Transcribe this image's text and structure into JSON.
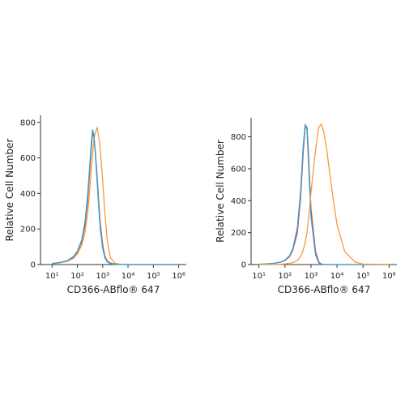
{
  "chart_data": [
    {
      "type": "line",
      "xscale": "log",
      "xlabel": "CD366-ABflo® 647",
      "ylabel": "Relative Cell Number",
      "xlim": [
        3.5,
        2000000
      ],
      "ylim": [
        0,
        840
      ],
      "xticks": [
        {
          "value": 10,
          "label": "10¹"
        },
        {
          "value": 100,
          "label": "10²"
        },
        {
          "value": 1000,
          "label": "10³"
        },
        {
          "value": 10000,
          "label": "10⁴"
        },
        {
          "value": 100000,
          "label": "10⁵"
        },
        {
          "value": 1000000,
          "label": "10⁶"
        }
      ],
      "yticks": [
        0,
        200,
        400,
        600,
        800
      ],
      "x": [
        10,
        20,
        40,
        70,
        100,
        150,
        200,
        250,
        300,
        350,
        400,
        450,
        500,
        600,
        700,
        800,
        1000,
        1200,
        1500,
        2000,
        3000,
        5000,
        10000,
        100000,
        1000000
      ],
      "series": [
        {
          "color": "#e0413a",
          "values": [
            5,
            10,
            20,
            40,
            70,
            130,
            220,
            350,
            500,
            640,
            740,
            720,
            650,
            500,
            350,
            230,
            110,
            50,
            20,
            8,
            3,
            1,
            0,
            0,
            0
          ]
        },
        {
          "color": "#f59a3a",
          "values": [
            5,
            10,
            18,
            35,
            60,
            110,
            180,
            280,
            400,
            520,
            620,
            700,
            740,
            770,
            720,
            650,
            470,
            300,
            140,
            40,
            8,
            2,
            0,
            0,
            0
          ]
        },
        {
          "color": "#2aa6d8",
          "values": [
            6,
            12,
            22,
            45,
            75,
            140,
            240,
            380,
            530,
            670,
            760,
            730,
            640,
            470,
            320,
            200,
            90,
            40,
            15,
            6,
            2,
            1,
            0,
            0,
            0
          ]
        }
      ]
    },
    {
      "type": "line",
      "xscale": "log",
      "xlabel": "CD366-ABflo® 647",
      "ylabel": "Relative Cell Number",
      "xlim": [
        5,
        2000000
      ],
      "ylim": [
        0,
        920
      ],
      "xticks": [
        {
          "value": 10,
          "label": "10¹"
        },
        {
          "value": 100,
          "label": "10²"
        },
        {
          "value": 1000,
          "label": "10³"
        },
        {
          "value": 10000,
          "label": "10⁴"
        },
        {
          "value": 100000,
          "label": "10⁵"
        },
        {
          "value": 1000000,
          "label": "10⁶"
        }
      ],
      "yticks": [
        0,
        200,
        400,
        600,
        800
      ],
      "x": [
        10,
        20,
        40,
        70,
        100,
        150,
        200,
        300,
        400,
        500,
        600,
        700,
        800,
        1000,
        1500,
        2000,
        2500,
        3000,
        4000,
        5000,
        7000,
        10000,
        20000,
        50000,
        100000,
        1000000
      ],
      "series": [
        {
          "color": "#e0413a",
          "values": [
            2,
            4,
            8,
            15,
            25,
            50,
            90,
            200,
            420,
            700,
            870,
            860,
            700,
            350,
            80,
            15,
            3,
            1,
            0,
            0,
            0,
            0,
            0,
            0,
            0,
            0
          ]
        },
        {
          "color": "#2aa6d8",
          "values": [
            2,
            4,
            8,
            16,
            28,
            55,
            100,
            230,
            460,
            740,
            880,
            840,
            650,
            300,
            60,
            10,
            2,
            0,
            0,
            0,
            0,
            0,
            0,
            0,
            0,
            0
          ]
        },
        {
          "color": "#f59a3a",
          "values": [
            0,
            0,
            1,
            2,
            4,
            8,
            12,
            25,
            50,
            90,
            140,
            200,
            280,
            450,
            720,
            860,
            880,
            840,
            720,
            600,
            420,
            250,
            80,
            15,
            3,
            0
          ]
        }
      ]
    }
  ]
}
